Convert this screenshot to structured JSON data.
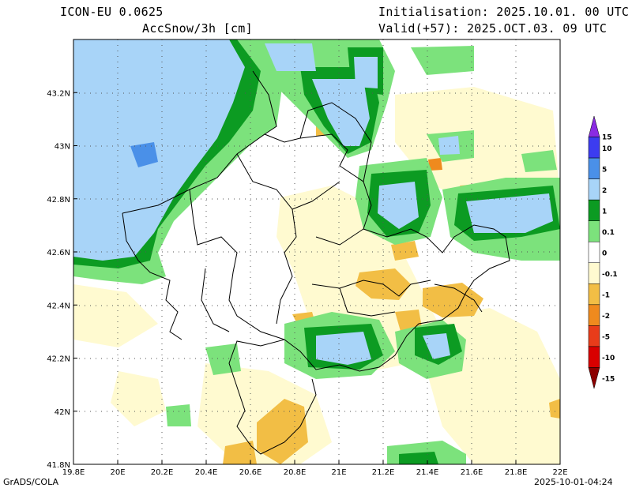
{
  "header": {
    "model": "ICON-EU 0.0625",
    "field": "AccSnow/3h [cm]",
    "init": "Initialisation: 2025.10.01. 00 UTC",
    "valid": "Valid(+57): 2025.OCT.03. 09 UTC"
  },
  "footer": {
    "credit": "GrADS/COLA",
    "timestamp": "2025-10-01-04:24"
  },
  "axes": {
    "lon_min": 19.8,
    "lon_max": 22.0,
    "lat_min": 41.8,
    "lat_max": 43.4,
    "x_ticks": [
      {
        "v": 19.8,
        "t": "19.8E"
      },
      {
        "v": 20.0,
        "t": "20E"
      },
      {
        "v": 20.2,
        "t": "20.2E"
      },
      {
        "v": 20.4,
        "t": "20.4E"
      },
      {
        "v": 20.6,
        "t": "20.6E"
      },
      {
        "v": 20.8,
        "t": "20.8E"
      },
      {
        "v": 21.0,
        "t": "21E"
      },
      {
        "v": 21.2,
        "t": "21.2E"
      },
      {
        "v": 21.4,
        "t": "21.4E"
      },
      {
        "v": 21.6,
        "t": "21.6E"
      },
      {
        "v": 21.8,
        "t": "21.8E"
      },
      {
        "v": 22.0,
        "t": "22E"
      }
    ],
    "y_ticks": [
      {
        "v": 41.8,
        "t": "41.8N"
      },
      {
        "v": 42.0,
        "t": "42N"
      },
      {
        "v": 42.2,
        "t": "42.2N"
      },
      {
        "v": 42.4,
        "t": "42.4N"
      },
      {
        "v": 42.6,
        "t": "42.6N"
      },
      {
        "v": 42.8,
        "t": "42.8N"
      },
      {
        "v": 43.0,
        "t": "43N"
      },
      {
        "v": 43.2,
        "t": "43.2N"
      }
    ]
  },
  "legend": [
    {
      "label": "15",
      "color": "#8a2be2"
    },
    {
      "label": "10",
      "color": "#3c3cf0"
    },
    {
      "label": "5",
      "color": "#4a90e8"
    },
    {
      "label": "2",
      "color": "#a8d4f8"
    },
    {
      "label": "1",
      "color": "#0c9b22"
    },
    {
      "label": "0.1",
      "color": "#7ce27c"
    },
    {
      "label": "0",
      "color": "#ffffff"
    },
    {
      "label": "-0.1",
      "color": "#fffad0"
    },
    {
      "label": "-1",
      "color": "#f2be45"
    },
    {
      "label": "-2",
      "color": "#ef8a1e"
    },
    {
      "label": "-5",
      "color": "#e83c1a"
    },
    {
      "label": "-10",
      "color": "#d90000"
    },
    {
      "label": "-15",
      "color": "#8c0000"
    }
  ]
}
